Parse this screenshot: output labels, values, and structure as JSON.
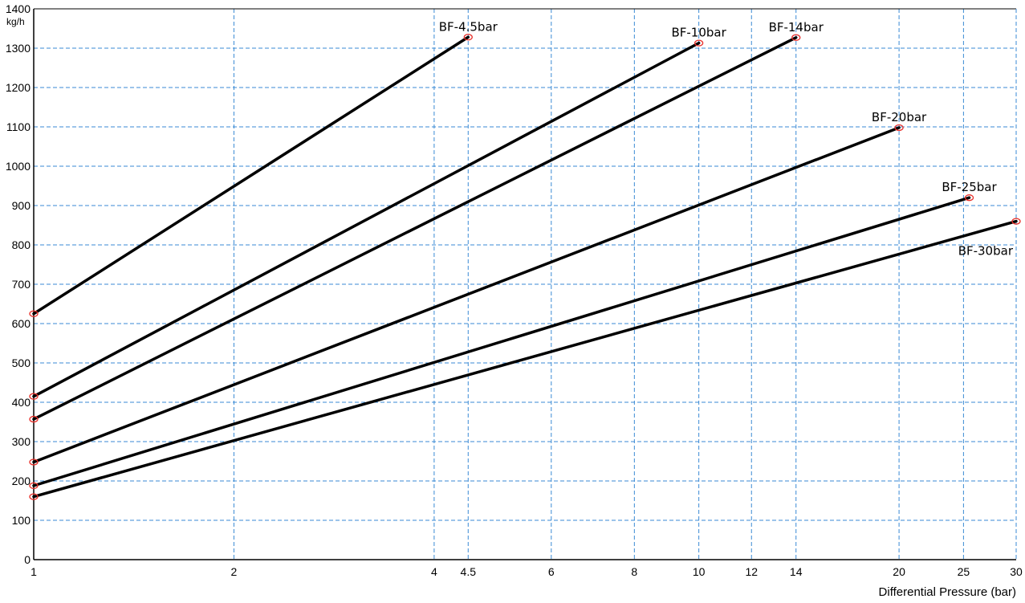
{
  "chart_data": {
    "type": "line",
    "x_scale": "log",
    "xlim": [
      1,
      30
    ],
    "ylim": [
      0,
      1400
    ],
    "grid": true,
    "xlabel": "Differential Pressure (bar)",
    "ylabel": "",
    "y_unit": "kg/h",
    "x_ticks": [
      1,
      2,
      4,
      4.5,
      6,
      8,
      10,
      12,
      14,
      20,
      25,
      30
    ],
    "y_ticks": [
      0,
      100,
      200,
      300,
      400,
      500,
      600,
      700,
      800,
      900,
      1000,
      1100,
      1200,
      1300,
      1400
    ],
    "series": [
      {
        "name": "BF-4.5bar",
        "x": [
          1,
          4.5
        ],
        "y": [
          625,
          1328
        ]
      },
      {
        "name": "BF-10bar",
        "x": [
          1,
          10
        ],
        "y": [
          415,
          1313
        ]
      },
      {
        "name": "BF-14bar",
        "x": [
          1,
          14
        ],
        "y": [
          357,
          1327
        ]
      },
      {
        "name": "BF-20bar",
        "x": [
          1,
          20
        ],
        "y": [
          248,
          1098
        ]
      },
      {
        "name": "BF-25bar",
        "x": [
          1,
          25.5
        ],
        "y": [
          188,
          920
        ]
      },
      {
        "name": "BF-30bar",
        "x": [
          1,
          30
        ],
        "y": [
          160,
          860
        ]
      }
    ],
    "colors": {
      "line": "#000000",
      "marker": "#e8302a",
      "grid": "#3a8ad4"
    }
  }
}
